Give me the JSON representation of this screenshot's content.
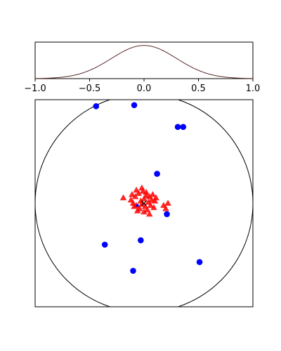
{
  "chart_data": [
    {
      "type": "line",
      "panel": "top",
      "xlim": [
        -1.0,
        1.0
      ],
      "ylim": [
        0,
        1.1
      ],
      "xticks": [
        -1.0,
        -0.5,
        0.0,
        0.5,
        1.0
      ],
      "xtick_labels": [
        "−1.0",
        "−0.5",
        "0.0",
        "0.5",
        "1.0"
      ],
      "yticks": [],
      "grid": false,
      "curve": {
        "kind": "gaussian",
        "mean": 0.0,
        "sigma": 0.3,
        "peak": 1.0,
        "color": "#5a2b2b"
      }
    },
    {
      "type": "scatter",
      "panel": "bottom",
      "xlim": [
        -1.0,
        1.0
      ],
      "ylim": [
        -0.95,
        0.95
      ],
      "xticks": [],
      "yticks": [],
      "grid": false,
      "circle": {
        "center": [
          0,
          0
        ],
        "radius": 1.0,
        "color": "#000000"
      },
      "series": [
        {
          "marker": "circle",
          "color": "#0000ff",
          "points": [
            [
              -0.44,
              0.89
            ],
            [
              -0.09,
              0.9
            ],
            [
              0.31,
              0.7
            ],
            [
              0.36,
              0.7
            ],
            [
              0.12,
              0.27
            ],
            [
              0.21,
              -0.1
            ],
            [
              -0.36,
              -0.38
            ],
            [
              -0.03,
              -0.34
            ],
            [
              -0.1,
              -0.62
            ],
            [
              0.51,
              -0.54
            ]
          ]
        },
        {
          "marker": "triangle",
          "color": "#ff0000",
          "points": [
            [
              -0.19,
              0.05
            ],
            [
              -0.12,
              0.03
            ],
            [
              -0.1,
              0.0
            ],
            [
              -0.08,
              0.06
            ],
            [
              -0.07,
              -0.02
            ],
            [
              -0.05,
              0.09
            ],
            [
              -0.04,
              -0.05
            ],
            [
              -0.03,
              0.02
            ],
            [
              -0.02,
              -0.01
            ],
            [
              -0.01,
              0.11
            ],
            [
              0.0,
              0.04
            ],
            [
              0.01,
              -0.03
            ],
            [
              0.02,
              0.07
            ],
            [
              0.03,
              -0.06
            ],
            [
              0.04,
              0.01
            ],
            [
              0.05,
              0.06
            ],
            [
              0.06,
              -0.02
            ],
            [
              0.07,
              0.03
            ],
            [
              0.08,
              0.08
            ],
            [
              0.09,
              -0.04
            ],
            [
              0.1,
              0.02
            ],
            [
              -0.06,
              -0.07
            ],
            [
              -0.09,
              -0.03
            ],
            [
              0.0,
              -0.08
            ],
            [
              0.11,
              0.05
            ],
            [
              0.18,
              -0.02
            ],
            [
              0.2,
              -0.05
            ],
            [
              0.22,
              0.0
            ],
            [
              -0.02,
              0.14
            ],
            [
              0.02,
              0.1
            ],
            [
              -0.11,
              0.08
            ],
            [
              0.05,
              -0.1
            ],
            [
              -0.07,
              0.12
            ]
          ]
        }
      ],
      "markers": [
        {
          "symbol": "x",
          "point": [
            0.0,
            0.0
          ],
          "color": "#000000"
        },
        {
          "symbol": "dot",
          "point": [
            -0.06,
            -0.02
          ],
          "color": "#0000ff"
        }
      ]
    }
  ]
}
